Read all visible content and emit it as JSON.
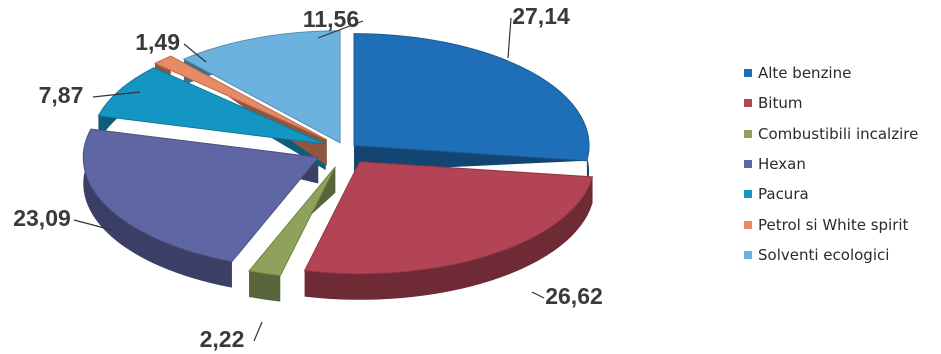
{
  "chart_data": {
    "type": "pie",
    "title": "",
    "categories": [
      "Alte benzine",
      "Bitum",
      "Combustibili incalzire",
      "Hexan",
      "Pacura",
      "Petrol si White spirit",
      "Solventi ecologici"
    ],
    "values": [
      27.14,
      26.62,
      2.22,
      23.09,
      7.87,
      1.49,
      11.56
    ],
    "value_labels": [
      "27,14",
      "26,62",
      "2,22",
      "23,09",
      "7,87",
      "1,49",
      "11,56"
    ],
    "colors": [
      "#1f6fb8",
      "#b24455",
      "#8ea25c",
      "#5f66a4",
      "#1397c2",
      "#e78b66",
      "#6bb2df"
    ],
    "legend_position": "right",
    "exploded": true,
    "style": "3d"
  },
  "legend": {
    "items": [
      "Alte benzine",
      "Bitum",
      "Combustibili incalzire",
      "Hexan",
      "Pacura",
      "Petrol si White spirit",
      "Solventi ecologici"
    ]
  }
}
